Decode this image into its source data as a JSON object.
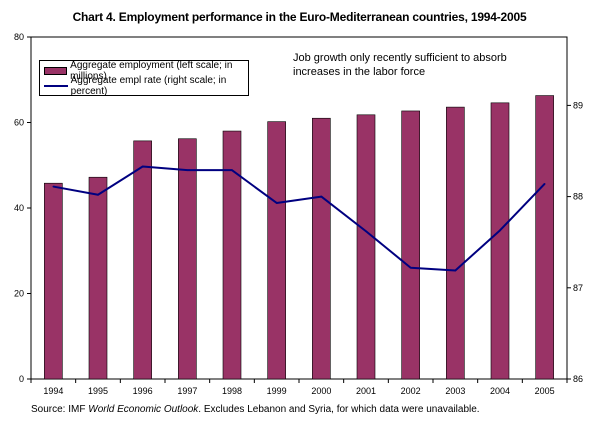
{
  "title": "Chart 4. Employment performance in the Euro-Mediterranean countries, 1994-2005",
  "annotation": [
    "Job growth only recently sufficient to absorb",
    "increases in the labor force"
  ],
  "source_prefix": "Source: IMF ",
  "source_italic": "World Economic Outlook",
  "source_suffix": ". Excludes Lebanon and Syria, for which data were unavailable.",
  "colors": {
    "bar": "#993366",
    "line": "#000080"
  },
  "chart_data": {
    "type": "bar",
    "categories": [
      "1994",
      "1995",
      "1996",
      "1997",
      "1998",
      "1999",
      "2000",
      "2001",
      "2002",
      "2003",
      "2004",
      "2005"
    ],
    "series": [
      {
        "name": "Aggregate employment (left scale; in millions)",
        "type": "bar",
        "axis": "left",
        "values": [
          45.8,
          47.2,
          55.7,
          56.2,
          58.0,
          60.2,
          61.0,
          61.8,
          62.7,
          63.6,
          64.6,
          66.3
        ]
      },
      {
        "name": "Aggregate empl rate (right scale; in percent)",
        "type": "line",
        "axis": "right",
        "values": [
          88.11,
          88.02,
          88.33,
          88.29,
          88.29,
          87.93,
          88.0,
          87.62,
          87.22,
          87.19,
          87.63,
          88.14
        ]
      }
    ],
    "left_axis": {
      "ylim": [
        0,
        80
      ],
      "ticks": [
        0,
        20,
        40,
        60,
        80
      ]
    },
    "right_axis": {
      "ylim": [
        86,
        89.75
      ],
      "ticks": [
        86,
        87,
        88,
        89
      ]
    },
    "legend_position": "top-left",
    "grid": false
  }
}
